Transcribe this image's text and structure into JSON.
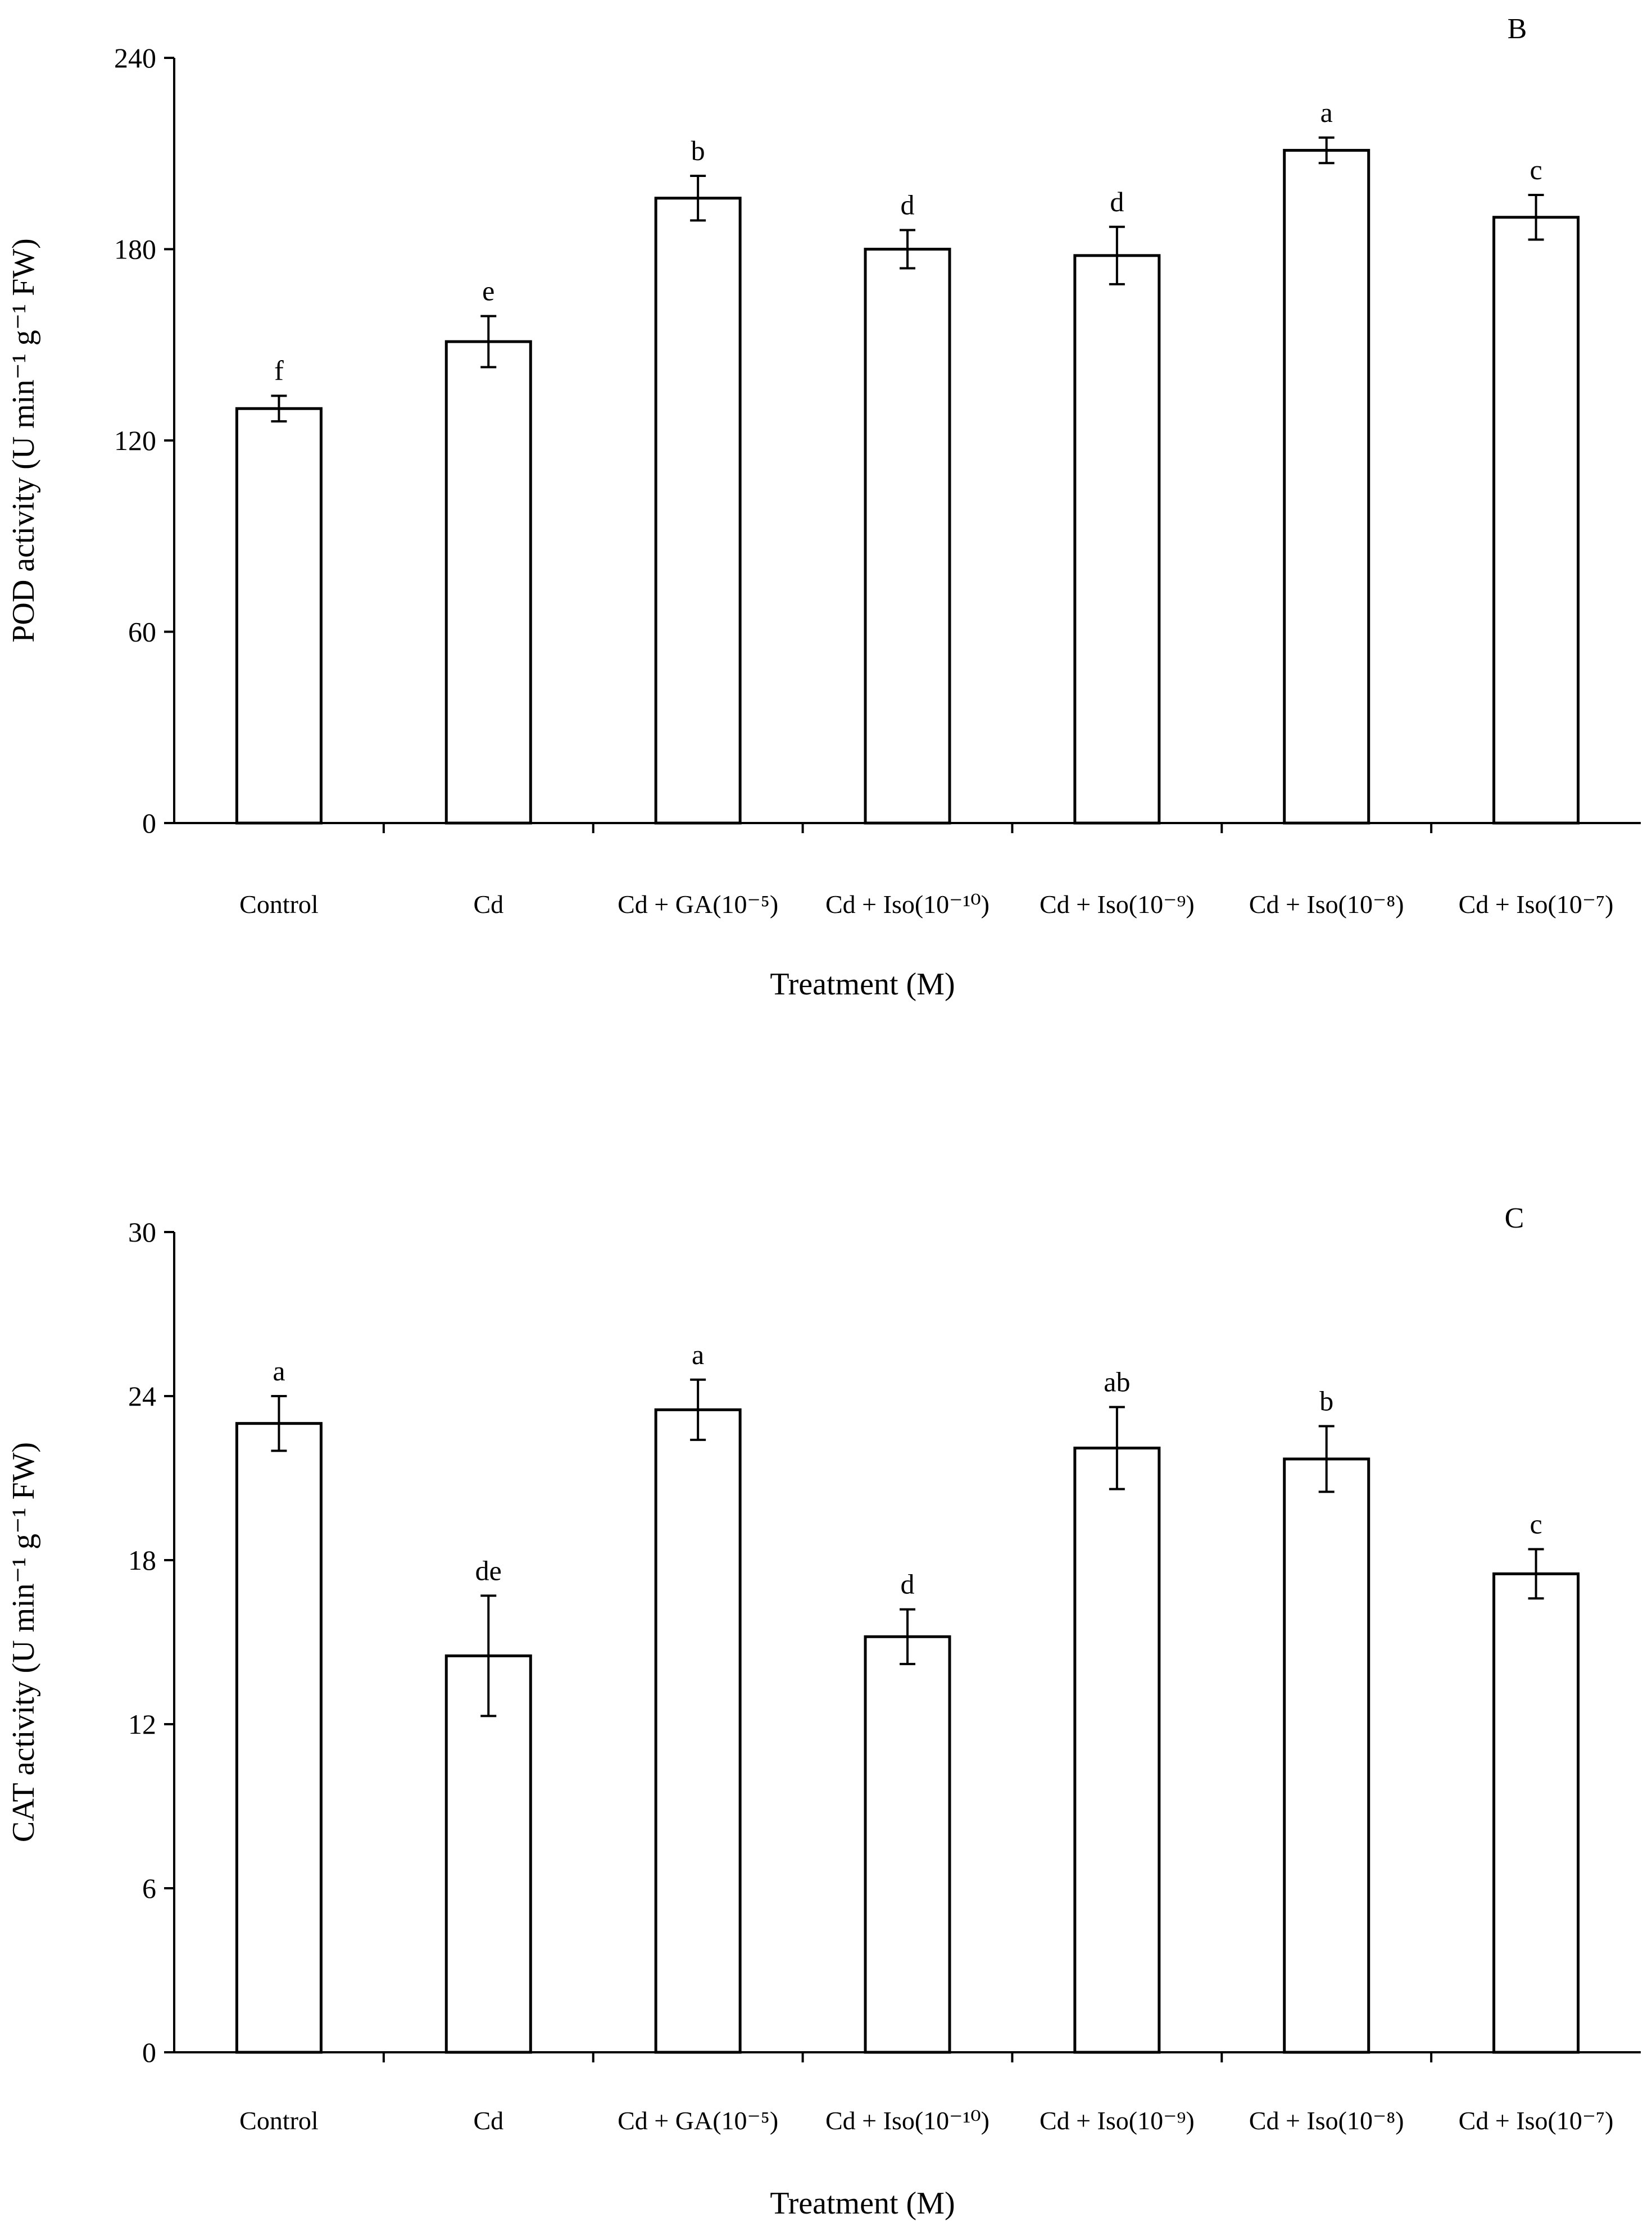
{
  "chart_data": [
    {
      "type": "bar",
      "panel_label": "B",
      "categories": [
        "Control",
        "Cd",
        "Cd + GA(10⁻⁵)",
        "Cd + Iso(10⁻¹⁰)",
        "Cd + Iso(10⁻⁹)",
        "Cd + Iso(10⁻⁸)",
        "Cd + Iso(10⁻⁷)"
      ],
      "values": [
        130,
        151,
        196,
        180,
        178,
        211,
        190
      ],
      "errors": [
        4,
        8,
        7,
        6,
        9,
        4,
        7
      ],
      "significance": [
        "f",
        "e",
        "b",
        "d",
        "d",
        "a",
        "c"
      ],
      "xlabel": "Treatment (M)",
      "ylabel": "POD activity (U min⁻¹ g⁻¹ FW)",
      "ylim": [
        0,
        240
      ],
      "yticks": [
        0,
        60,
        120,
        180,
        240
      ],
      "grid": false,
      "legend": "none"
    },
    {
      "type": "bar",
      "panel_label": "C",
      "categories": [
        "Control",
        "Cd",
        "Cd + GA(10⁻⁵)",
        "Cd + Iso(10⁻¹⁰)",
        "Cd + Iso(10⁻⁹)",
        "Cd + Iso(10⁻⁸)",
        "Cd + Iso(10⁻⁷)"
      ],
      "values": [
        23.0,
        14.5,
        23.5,
        15.2,
        22.1,
        21.7,
        17.5
      ],
      "errors": [
        1.0,
        2.2,
        1.1,
        1.0,
        1.5,
        1.2,
        0.9
      ],
      "significance": [
        "a",
        "de",
        "a",
        "d",
        "ab",
        "b",
        "c"
      ],
      "xlabel": "Treatment (M)",
      "ylabel": "CAT activity (U min⁻¹ g⁻¹ FW)",
      "ylim": [
        0,
        30
      ],
      "yticks": [
        0,
        6,
        12,
        18,
        24,
        30
      ],
      "grid": false,
      "legend": "none"
    }
  ]
}
